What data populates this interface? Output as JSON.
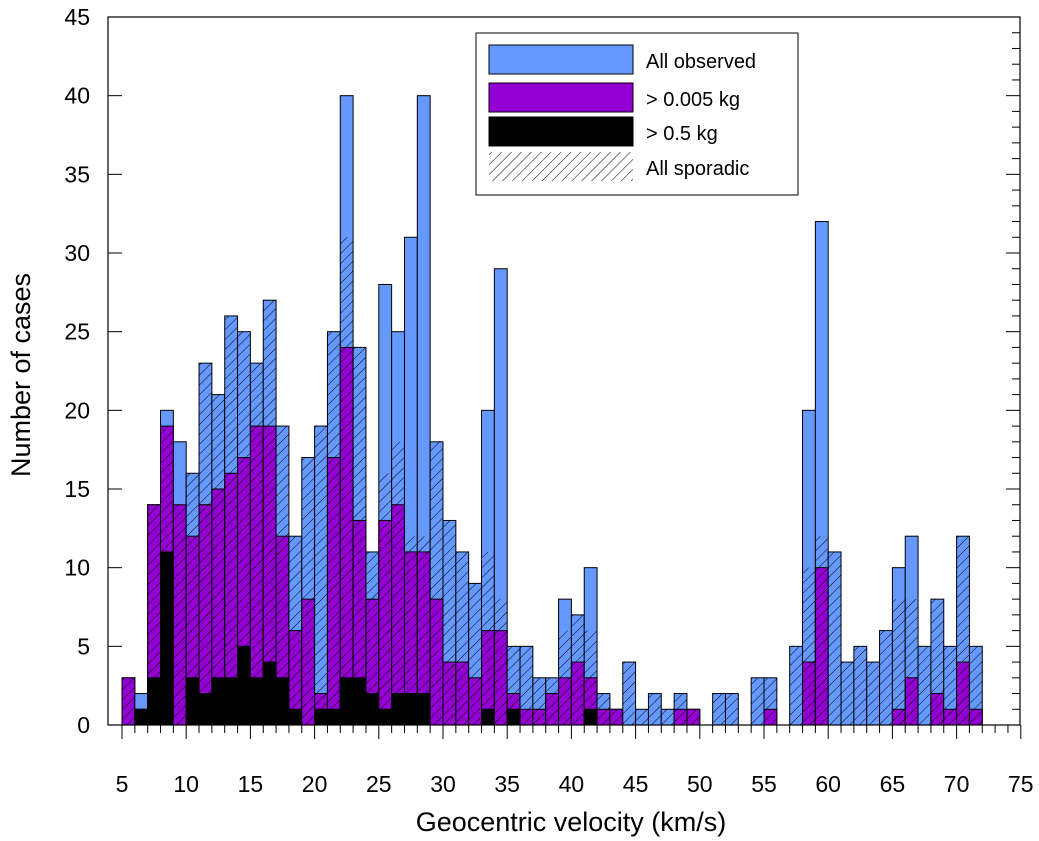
{
  "chart_data": {
    "type": "bar",
    "xlabel": "Geocentric velocity (km/s)",
    "ylabel": "Number of cases",
    "xlim": [
      5,
      75
    ],
    "ylim": [
      0,
      45
    ],
    "x_ticks": [
      5,
      10,
      15,
      20,
      25,
      30,
      35,
      40,
      45,
      50,
      55,
      60,
      65,
      70,
      75
    ],
    "y_ticks": [
      0,
      5,
      10,
      15,
      20,
      25,
      30,
      35,
      40,
      45
    ],
    "bin_width_kms": 1,
    "bin_starts": [
      5,
      6,
      7,
      8,
      9,
      10,
      11,
      12,
      13,
      14,
      15,
      16,
      17,
      18,
      19,
      20,
      21,
      22,
      23,
      24,
      25,
      26,
      27,
      28,
      29,
      30,
      31,
      32,
      33,
      34,
      35,
      36,
      37,
      38,
      39,
      40,
      41,
      42,
      43,
      44,
      45,
      46,
      47,
      48,
      49,
      50,
      51,
      52,
      53,
      54,
      55,
      56,
      57,
      58,
      59,
      60,
      61,
      62,
      63,
      64,
      65,
      66,
      67,
      68,
      69,
      70,
      71
    ],
    "series": [
      {
        "name": "All observed",
        "color": "#6699ff",
        "values": [
          3,
          2,
          14,
          20,
          18,
          16,
          23,
          21,
          26,
          25,
          23,
          27,
          19,
          12,
          17,
          19,
          25,
          40,
          24,
          11,
          28,
          25,
          31,
          40,
          18,
          13,
          11,
          9,
          20,
          29,
          5,
          5,
          3,
          3,
          8,
          7,
          10,
          2,
          1,
          4,
          1,
          2,
          1,
          2,
          1,
          0,
          2,
          2,
          0,
          3,
          3,
          0,
          5,
          20,
          32,
          11,
          4,
          5,
          4,
          6,
          10,
          12,
          5,
          8,
          5,
          12,
          5
        ]
      },
      {
        "name": "> 0.005 kg",
        "color": "#9400d3",
        "values": [
          3,
          1,
          14,
          19,
          14,
          12,
          14,
          15,
          16,
          17,
          19,
          19,
          12,
          6,
          8,
          2,
          17,
          24,
          13,
          8,
          13,
          14,
          11,
          11,
          8,
          4,
          4,
          3,
          6,
          6,
          2,
          1,
          1,
          2,
          3,
          4,
          3,
          1,
          1,
          0,
          0,
          0,
          0,
          1,
          1,
          0,
          0,
          0,
          0,
          0,
          1,
          0,
          0,
          4,
          10,
          0,
          0,
          0,
          0,
          0,
          1,
          3,
          0,
          2,
          1,
          4,
          1
        ]
      },
      {
        "name": "> 0.5 kg",
        "color": "#000000",
        "values": [
          0,
          1,
          3,
          11,
          0,
          3,
          2,
          3,
          3,
          5,
          3,
          4,
          3,
          1,
          0,
          1,
          1,
          3,
          3,
          2,
          1,
          2,
          2,
          2,
          0,
          0,
          0,
          0,
          1,
          0,
          1,
          0,
          0,
          0,
          0,
          0,
          1,
          0,
          0,
          0,
          0,
          0,
          0,
          0,
          0,
          0,
          0,
          0,
          0,
          0,
          0,
          0,
          0,
          0,
          0,
          0,
          0,
          0,
          0,
          0,
          0,
          0,
          0,
          0,
          0,
          0,
          0
        ]
      },
      {
        "name": "All sporadic",
        "pattern": "hatched",
        "values": [
          3,
          1,
          14,
          19,
          14,
          16,
          23,
          21,
          26,
          25,
          23,
          27,
          19,
          12,
          17,
          19,
          25,
          31,
          24,
          11,
          16,
          18,
          12,
          12,
          18,
          13,
          11,
          9,
          11,
          8,
          5,
          5,
          3,
          3,
          6,
          7,
          6,
          2,
          1,
          4,
          1,
          2,
          1,
          2,
          1,
          0,
          2,
          2,
          0,
          3,
          3,
          0,
          5,
          10,
          12,
          11,
          4,
          5,
          4,
          6,
          8,
          8,
          5,
          8,
          5,
          12,
          5
        ]
      }
    ],
    "legend_position": "top-right",
    "grid": false
  }
}
